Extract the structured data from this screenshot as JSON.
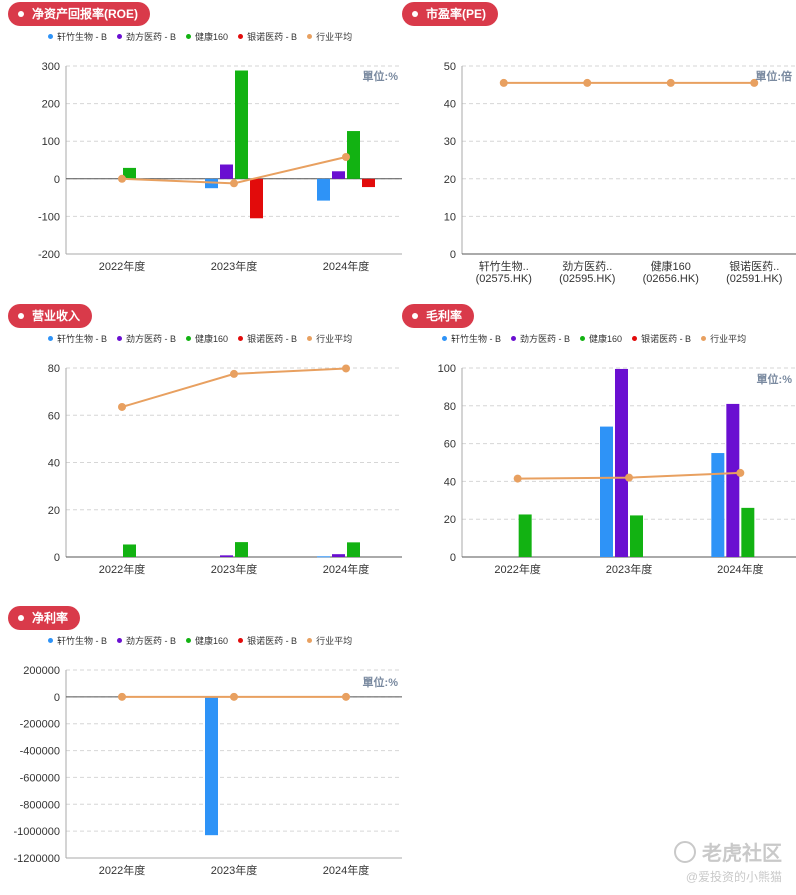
{
  "colors": {
    "title_bg": "#d93a4a",
    "series": [
      "#2e93f7",
      "#6a0fd1",
      "#12b212",
      "#e20b0b",
      "#e8a060"
    ]
  },
  "legend": [
    "轩竹生物 - B",
    "劲方医药 - B",
    "健康160",
    "银诺医药 - B",
    "行业平均"
  ],
  "watermark": {
    "brand": "老虎社区",
    "handle": "@爱投资的小熊猫",
    "logo_icon": "tiger-logo-icon"
  },
  "chart_data": [
    {
      "id": "roe",
      "type": "bar",
      "title": "净资产回报率(ROE)",
      "unit": "單位:%",
      "categories": [
        "2022年度",
        "2023年度",
        "2024年度"
      ],
      "ylim": [
        -200,
        300
      ],
      "yticks": [
        "300",
        "200",
        "100",
        "0",
        "-100",
        "-200"
      ],
      "ytick_values": [
        300,
        200,
        100,
        0,
        -100,
        -200
      ],
      "series": [
        {
          "name": "轩竹生物 - B",
          "values": [
            null,
            -25,
            -58
          ]
        },
        {
          "name": "劲方医药 - B",
          "values": [
            null,
            38,
            20
          ]
        },
        {
          "name": "健康160",
          "values": [
            29,
            288,
            127
          ]
        },
        {
          "name": "银诺医药 - B",
          "values": [
            null,
            -105,
            -22
          ]
        }
      ],
      "line": {
        "name": "行业平均",
        "values": [
          0,
          -12,
          58
        ]
      },
      "grid": true
    },
    {
      "id": "pe",
      "type": "line",
      "title": "市盈率(PE)",
      "unit": "單位:倍",
      "categories": [
        "轩竹生物..\n(02575.HK)",
        "劲方医药..\n(02595.HK)",
        "健康160\n(02656.HK)",
        "银诺医药..\n(02591.HK)"
      ],
      "ylim": [
        0,
        50
      ],
      "yticks": [
        "50",
        "40",
        "30",
        "20",
        "10",
        "0"
      ],
      "ytick_values": [
        50,
        40,
        30,
        20,
        10,
        0
      ],
      "line": {
        "name": "行业平均",
        "values": [
          45.5,
          45.5,
          45.5,
          45.5
        ]
      },
      "grid": true
    },
    {
      "id": "revenue",
      "type": "bar",
      "title": "营业收入",
      "unit": "",
      "categories": [
        "2022年度",
        "2023年度",
        "2024年度"
      ],
      "ylim": [
        0,
        80
      ],
      "yticks": [
        "80",
        "60",
        "40",
        "20",
        "0"
      ],
      "ytick_values": [
        80,
        60,
        40,
        20,
        0
      ],
      "series": [
        {
          "name": "轩竹生物 - B",
          "values": [
            null,
            null,
            0.3
          ]
        },
        {
          "name": "劲方医药 - B",
          "values": [
            null,
            0.7,
            1.2
          ]
        },
        {
          "name": "健康160",
          "values": [
            5.3,
            6.3,
            6.2
          ]
        },
        {
          "name": "银诺医药 - B",
          "values": [
            null,
            null,
            null
          ]
        }
      ],
      "line": {
        "name": "行业平均",
        "values": [
          63.5,
          77.5,
          79.8
        ]
      },
      "grid": true
    },
    {
      "id": "gross_margin",
      "type": "bar",
      "title": "毛利率",
      "unit": "單位:%",
      "categories": [
        "2022年度",
        "2023年度",
        "2024年度"
      ],
      "ylim": [
        0,
        100
      ],
      "yticks": [
        "100",
        "80",
        "60",
        "40",
        "20",
        "0"
      ],
      "ytick_values": [
        100,
        80,
        60,
        40,
        20,
        0
      ],
      "series": [
        {
          "name": "轩竹生物 - B",
          "values": [
            null,
            69,
            55
          ]
        },
        {
          "name": "劲方医药 - B",
          "values": [
            null,
            99.5,
            81
          ]
        },
        {
          "name": "健康160",
          "values": [
            22.5,
            22,
            26
          ]
        },
        {
          "name": "银诺医药 - B",
          "values": [
            null,
            null,
            null
          ]
        }
      ],
      "line": {
        "name": "行业平均",
        "values": [
          41.5,
          42,
          44.5
        ]
      },
      "grid": true
    },
    {
      "id": "net_margin",
      "type": "bar",
      "title": "净利率",
      "unit": "單位:%",
      "categories": [
        "2022年度",
        "2023年度",
        "2024年度"
      ],
      "ylim": [
        -1200000,
        200000
      ],
      "yticks": [
        "200000",
        "0",
        "-200000",
        "-400000",
        "-600000",
        "-800000",
        "-1000000",
        "-1200000"
      ],
      "ytick_values": [
        200000,
        0,
        -200000,
        -400000,
        -600000,
        -800000,
        -1000000,
        -1200000
      ],
      "series": [
        {
          "name": "轩竹生物 - B",
          "values": [
            null,
            -1030000,
            null
          ]
        },
        {
          "name": "劲方医药 - B",
          "values": [
            null,
            null,
            null
          ]
        },
        {
          "name": "健康160",
          "values": [
            null,
            null,
            null
          ]
        },
        {
          "name": "银诺医药 - B",
          "values": [
            null,
            null,
            null
          ]
        }
      ],
      "line": {
        "name": "行业平均",
        "values": [
          0,
          0,
          0
        ]
      },
      "grid": true
    }
  ]
}
